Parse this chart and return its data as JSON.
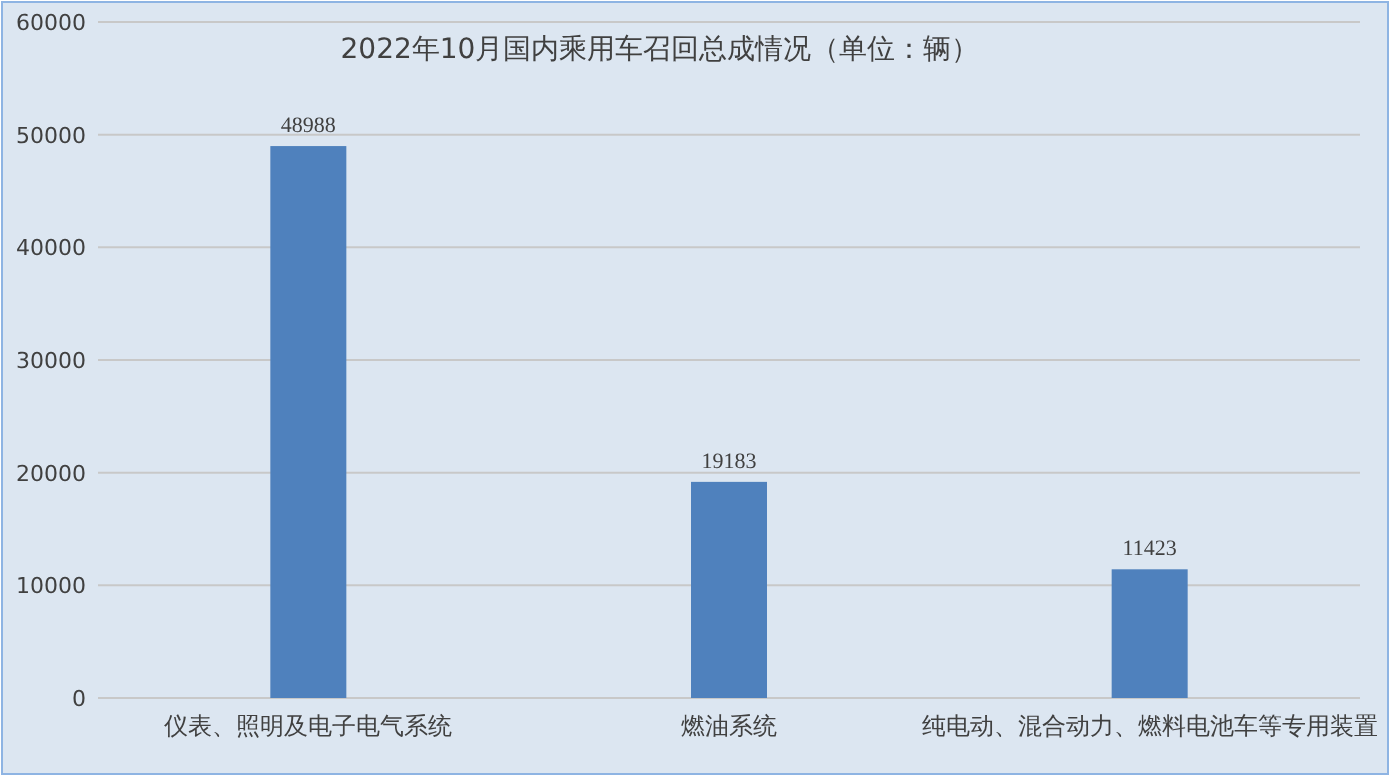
{
  "chart_data": {
    "type": "bar",
    "title": "2022年10月国内乘用车召回总成情况（单位：辆）",
    "categories": [
      "仪表、照明及电子电气系统",
      "燃油系统",
      "纯电动、混合动力、燃料电池车等专用装置"
    ],
    "values": [
      48988,
      19183,
      11423
    ],
    "color": "#4f81bd",
    "ylim": [
      0,
      60000
    ],
    "yticks": [
      0,
      10000,
      20000,
      30000,
      40000,
      50000,
      60000
    ],
    "grid": "y",
    "data_labels": true
  }
}
